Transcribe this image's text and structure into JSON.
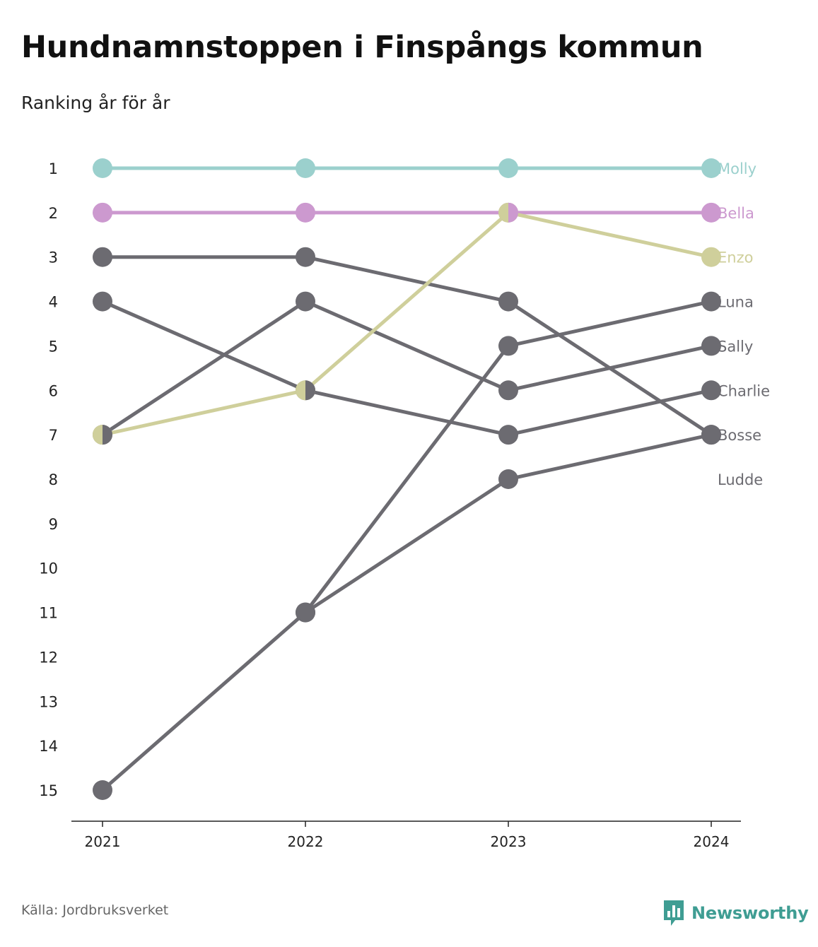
{
  "header": {
    "title": "Hundnamnstoppen i Finspångs kommun",
    "subtitle": "Ranking år för år"
  },
  "footer": {
    "source": "Källa: Jordbruksverket",
    "brand": "Newsworthy",
    "brand_icon": "newsworthy-logo-icon",
    "brand_color": "#3f9d93"
  },
  "chart_data": {
    "type": "line",
    "title": "Hundnamnstoppen i Finspångs kommun",
    "subtitle": "Ranking år för år",
    "x": [
      "2021",
      "2022",
      "2023",
      "2024"
    ],
    "y_ticks": [
      1,
      2,
      3,
      4,
      5,
      6,
      7,
      8,
      9,
      10,
      11,
      12,
      13,
      14,
      15
    ],
    "ylim": [
      1,
      15
    ],
    "y_inverted": true,
    "grid": false,
    "legend": "direct labels at the right end of each line",
    "series": [
      {
        "name": "Molly",
        "color": "#9bd0cd",
        "label_color": "#9bd0cd",
        "values": [
          1,
          1,
          1,
          1
        ]
      },
      {
        "name": "Bella",
        "color": "#cc99cf",
        "label_color": "#cc99cf",
        "values": [
          2,
          2,
          2,
          2
        ]
      },
      {
        "name": "Enzo",
        "color": "#cfcf9b",
        "label_color": "#cfcf9b",
        "values": [
          7,
          6,
          2,
          3
        ]
      },
      {
        "name": "Luna",
        "color": "#6c6b71",
        "label_color": "#6c6b71",
        "values": [
          15,
          11,
          5,
          4
        ]
      },
      {
        "name": "Sally",
        "color": "#6c6b71",
        "label_color": "#6c6b71",
        "values": [
          7,
          4,
          6,
          5
        ]
      },
      {
        "name": "Charlie",
        "color": "#6c6b71",
        "label_color": "#6c6b71",
        "values": [
          4,
          6,
          7,
          6
        ]
      },
      {
        "name": "Bosse",
        "color": "#6c6b71",
        "label_color": "#6c6b71",
        "values": [
          3,
          3,
          4,
          7
        ]
      },
      {
        "name": "Ludde",
        "color": "#6c6b71",
        "label_color": "#6c6b71",
        "values": [
          null,
          11,
          8,
          7
        ],
        "label_rank": 8
      }
    ]
  }
}
